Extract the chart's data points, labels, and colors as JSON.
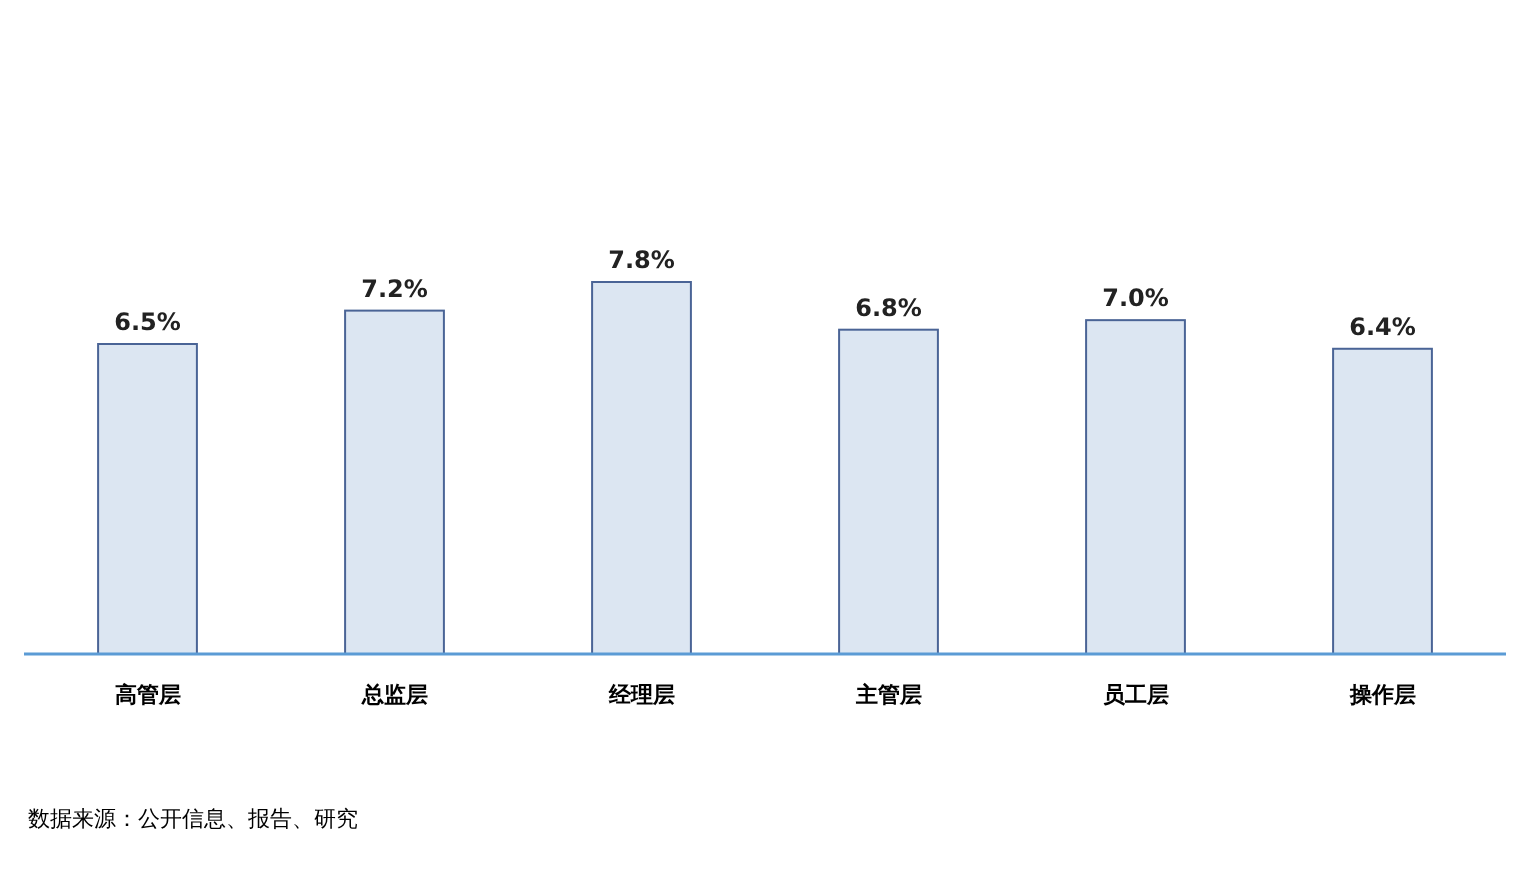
{
  "chart_data": {
    "type": "bar",
    "categories": [
      "高管层",
      "总监层",
      "经理层",
      "主管层",
      "员工层",
      "操作层"
    ],
    "values": [
      6.5,
      7.2,
      7.8,
      6.8,
      7.0,
      6.4
    ],
    "value_labels": [
      "6.5%",
      "7.2%",
      "7.8%",
      "6.8%",
      "7.0%",
      "6.4%"
    ],
    "color": "#dce6f2",
    "annotations": [
      "数据来源：公开信息、报告、研究"
    ]
  }
}
